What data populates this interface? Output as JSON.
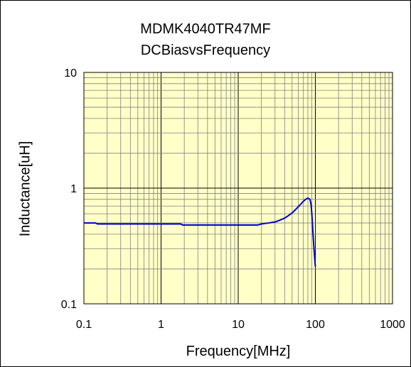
{
  "chart_data": {
    "type": "line",
    "title": "MDMK4040TR47MF",
    "subtitle": "DCBiasvsFrequency",
    "xlabel": "Frequency[MHz]",
    "ylabel": "Inductance[uH]",
    "x_scale": "log",
    "y_scale": "log",
    "xlim": [
      0.1,
      1000
    ],
    "ylim": [
      0.1,
      10
    ],
    "x_ticks": [
      "0.1",
      "1",
      "10",
      "100",
      "1000"
    ],
    "y_ticks": [
      "0.1",
      "1",
      "10"
    ],
    "grid": true,
    "legend": "none",
    "plot_background": "#ffffc8",
    "series": [
      {
        "color": "#0000cc",
        "x": [
          0.1,
          0.14,
          0.15,
          0.5,
          1.0,
          1.8,
          1.9,
          5,
          10,
          18,
          20,
          25,
          30,
          35,
          40,
          45,
          50,
          55,
          60,
          65,
          70,
          75,
          80,
          85,
          88,
          90,
          92,
          94,
          96,
          98,
          100
        ],
        "y": [
          0.5,
          0.5,
          0.49,
          0.49,
          0.49,
          0.49,
          0.48,
          0.48,
          0.48,
          0.48,
          0.49,
          0.5,
          0.51,
          0.53,
          0.55,
          0.58,
          0.61,
          0.65,
          0.69,
          0.73,
          0.77,
          0.8,
          0.82,
          0.8,
          0.72,
          0.6,
          0.47,
          0.37,
          0.3,
          0.25,
          0.21
        ]
      }
    ]
  }
}
